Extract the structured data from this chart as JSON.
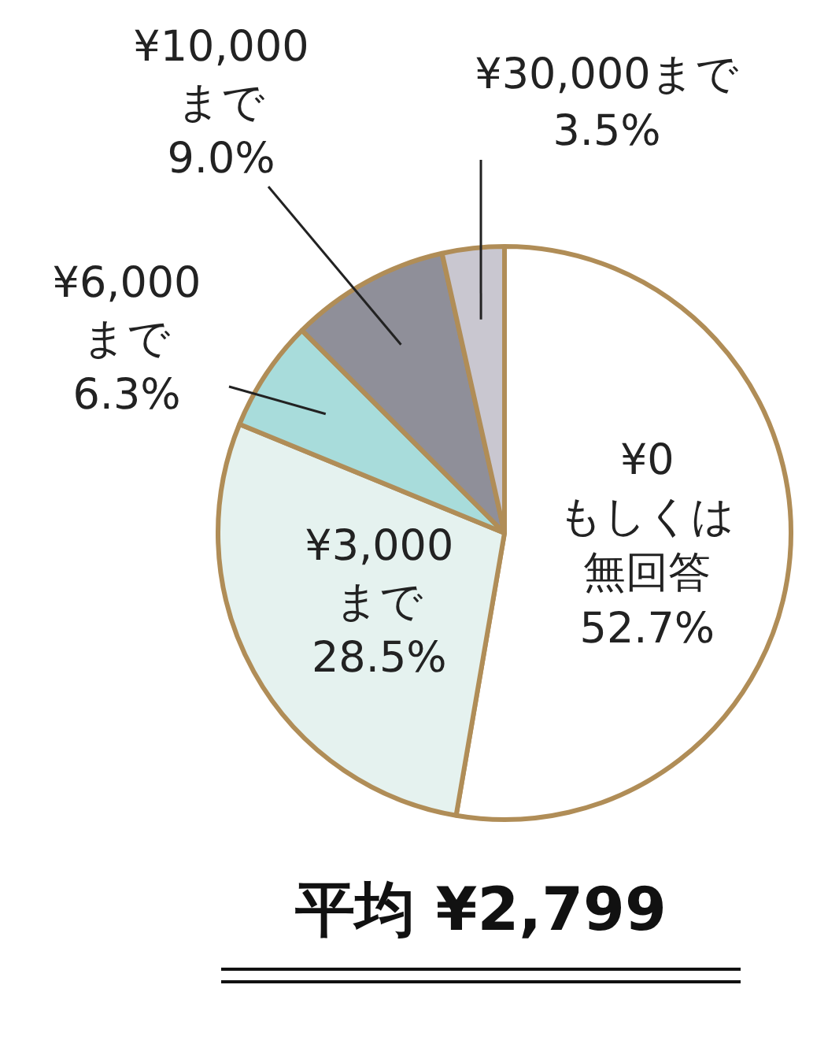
{
  "chart_data": {
    "type": "pie",
    "categories": [
      "¥0\nもしくは無回答",
      "¥3,000\nまで",
      "¥6,000\nまで",
      "¥10,000\nまで",
      "¥30,000まで"
    ],
    "values": [
      52.7,
      28.5,
      6.3,
      9.0,
      3.5
    ],
    "value_labels": [
      "52.7%",
      "28.5%",
      "6.3%",
      "9.0%",
      "3.5%"
    ],
    "colors": [
      "#ffffff",
      "#e5f2ef",
      "#a8dcdb",
      "#8f8f99",
      "#c9c7d0"
    ],
    "annotations": [
      "平均 ¥2,799"
    ]
  }
}
